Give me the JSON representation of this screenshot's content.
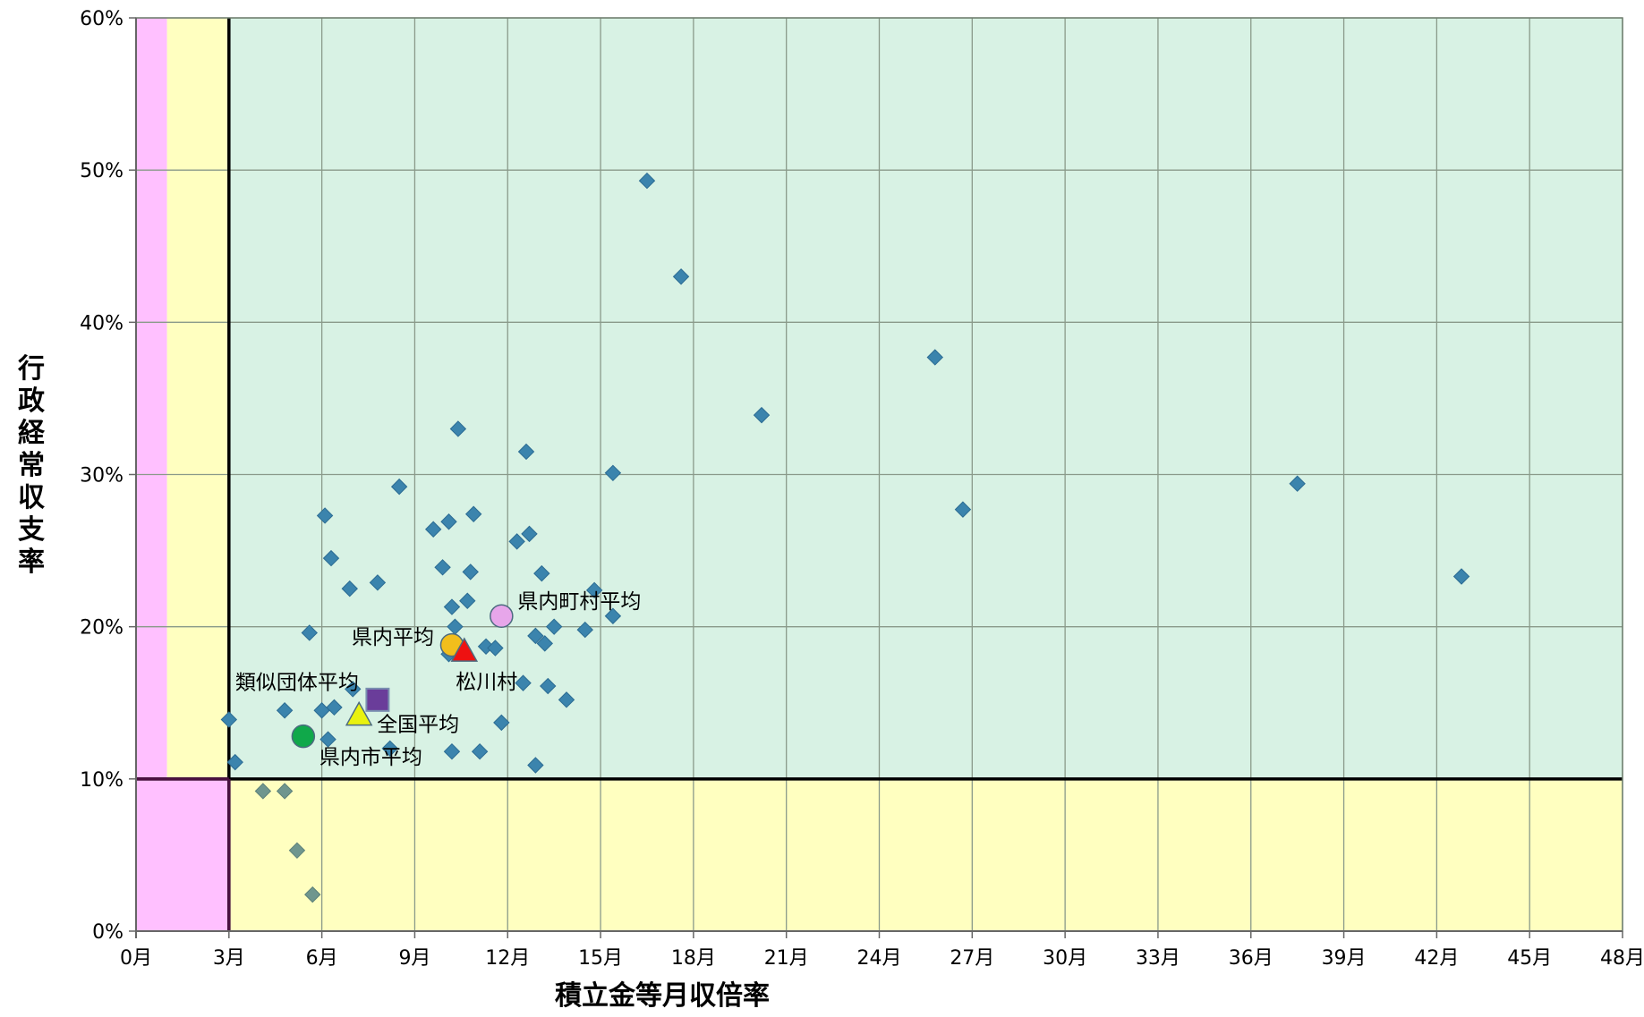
{
  "chart_data": {
    "type": "scatter",
    "xlabel": "積立金等月収倍率",
    "ylabel": "行政経常収支率",
    "xlim": [
      0,
      48
    ],
    "ylim": [
      0,
      60
    ],
    "x_ticks": [
      "0月",
      "3月",
      "6月",
      "9月",
      "12月",
      "15月",
      "18月",
      "21月",
      "24月",
      "27月",
      "30月",
      "33月",
      "36月",
      "39月",
      "42月",
      "45月",
      "48月"
    ],
    "y_ticks": [
      "0%",
      "10%",
      "20%",
      "30%",
      "40%",
      "50%",
      "60%"
    ],
    "grid": true,
    "zones": [
      {
        "name": "pink-left",
        "x": [
          0,
          1
        ],
        "y": [
          10,
          60
        ],
        "color": "#ffc0ff"
      },
      {
        "name": "yellow-left",
        "x": [
          1,
          3
        ],
        "y": [
          10,
          60
        ],
        "color": "#ffffc0"
      },
      {
        "name": "green-main",
        "x": [
          3,
          48
        ],
        "y": [
          10,
          60
        ],
        "color": "#d8f2e4"
      },
      {
        "name": "pink-corner",
        "x": [
          0,
          3
        ],
        "y": [
          0,
          10
        ],
        "color": "#ffc0ff"
      },
      {
        "name": "yellow-bottom",
        "x": [
          3,
          48
        ],
        "y": [
          0,
          10
        ],
        "color": "#ffffc0"
      }
    ],
    "threshold_lines": {
      "x": 3,
      "y": 10
    },
    "points": [
      [
        16.5,
        49.3
      ],
      [
        17.6,
        43.0
      ],
      [
        25.8,
        37.7
      ],
      [
        20.2,
        33.9
      ],
      [
        10.4,
        33.0
      ],
      [
        12.6,
        31.5
      ],
      [
        15.4,
        30.1
      ],
      [
        8.5,
        29.2
      ],
      [
        37.5,
        29.4
      ],
      [
        26.7,
        27.7
      ],
      [
        6.1,
        27.3
      ],
      [
        10.9,
        27.4
      ],
      [
        10.1,
        26.9
      ],
      [
        9.6,
        26.4
      ],
      [
        12.7,
        26.1
      ],
      [
        12.3,
        25.6
      ],
      [
        6.3,
        24.5
      ],
      [
        9.9,
        23.9
      ],
      [
        10.8,
        23.6
      ],
      [
        13.1,
        23.5
      ],
      [
        42.8,
        23.3
      ],
      [
        6.9,
        22.5
      ],
      [
        7.8,
        22.9
      ],
      [
        14.8,
        22.4
      ],
      [
        10.7,
        21.7
      ],
      [
        10.2,
        21.3
      ],
      [
        15.4,
        20.7
      ],
      [
        13.5,
        20.0
      ],
      [
        14.5,
        19.8
      ],
      [
        5.6,
        19.6
      ],
      [
        10.3,
        20.0
      ],
      [
        12.9,
        19.4
      ],
      [
        13.2,
        18.9
      ],
      [
        11.3,
        18.7
      ],
      [
        11.6,
        18.6
      ],
      [
        10.1,
        18.2
      ],
      [
        13.3,
        16.1
      ],
      [
        12.5,
        16.3
      ],
      [
        7.0,
        15.9
      ],
      [
        13.9,
        15.2
      ],
      [
        6.0,
        14.5
      ],
      [
        6.4,
        14.7
      ],
      [
        4.8,
        14.5
      ],
      [
        3.0,
        13.9
      ],
      [
        11.8,
        13.7
      ],
      [
        6.2,
        12.6
      ],
      [
        8.2,
        12.0
      ],
      [
        10.2,
        11.8
      ],
      [
        11.1,
        11.8
      ],
      [
        3.2,
        11.1
      ],
      [
        12.9,
        10.9
      ],
      [
        4.1,
        9.2
      ],
      [
        4.8,
        9.2
      ],
      [
        5.2,
        5.3
      ],
      [
        5.7,
        2.4
      ]
    ],
    "annotations": [
      {
        "label": "県内町村平均",
        "x": 11.8,
        "y": 20.7,
        "marker": "circle",
        "color": "#e7a6ea"
      },
      {
        "label": "県内平均",
        "x": 10.2,
        "y": 18.8,
        "marker": "circle",
        "color": "#f2be1c"
      },
      {
        "label": "松川村",
        "x": 10.6,
        "y": 18.4,
        "marker": "triangle",
        "color": "#ee1111"
      },
      {
        "label": "類似団体平均",
        "x": 7.8,
        "y": 15.2,
        "marker": "square",
        "color": "#6a3d9a"
      },
      {
        "label": "全国平均",
        "x": 7.2,
        "y": 14.2,
        "marker": "triangle",
        "color": "#e9f20f"
      },
      {
        "label": "県内市平均",
        "x": 5.4,
        "y": 12.8,
        "marker": "circle",
        "color": "#10a84a"
      }
    ],
    "point_color": "#3b84ad"
  }
}
